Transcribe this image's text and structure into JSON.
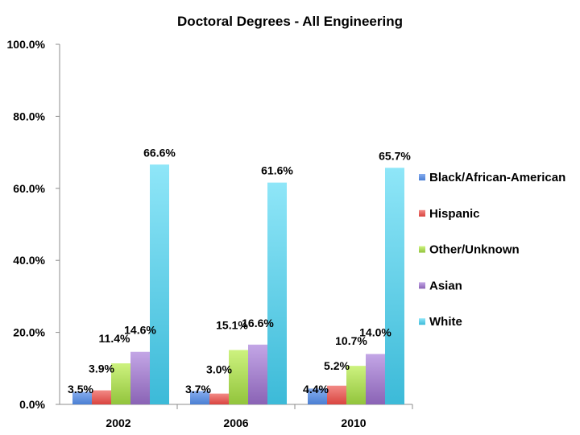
{
  "chart_data": {
    "type": "bar",
    "title": "Doctoral Degrees - All Engineering",
    "categories": [
      "2002",
      "2006",
      "2010"
    ],
    "series": [
      {
        "name": "Black/African-American",
        "values": [
          3.5,
          3.7,
          4.4
        ],
        "labels": [
          "3.5%",
          "3.7%",
          "4.4%"
        ],
        "color": "#4a7fd3",
        "color_light": "#86acee"
      },
      {
        "name": "Hispanic",
        "values": [
          3.9,
          3.0,
          5.2
        ],
        "labels": [
          "3.9%",
          "3.0%",
          "5.2%"
        ],
        "color": "#d9443f",
        "color_light": "#f28a86"
      },
      {
        "name": "Other/Unknown",
        "values": [
          11.4,
          15.1,
          10.7
        ],
        "labels": [
          "11.4%",
          "15.1%",
          "10.7%"
        ],
        "color": "#92c43c",
        "color_light": "#cdf27f"
      },
      {
        "name": "Asian",
        "values": [
          14.6,
          16.6,
          14.0
        ],
        "labels": [
          "14.6%",
          "16.6%",
          "14.0%"
        ],
        "color": "#8a63b5",
        "color_light": "#c3a6e6"
      },
      {
        "name": "White",
        "values": [
          66.6,
          61.6,
          65.7
        ],
        "labels": [
          "66.6%",
          "61.6%",
          "65.7%"
        ],
        "color": "#3cbad8",
        "color_light": "#8fe6f8"
      }
    ],
    "ylim": [
      0,
      100
    ],
    "yticks": [
      "0.0%",
      "20.0%",
      "40.0%",
      "60.0%",
      "80.0%",
      "100.0%"
    ],
    "xlabel": "",
    "ylabel": "",
    "grid": false,
    "legend": "right"
  }
}
